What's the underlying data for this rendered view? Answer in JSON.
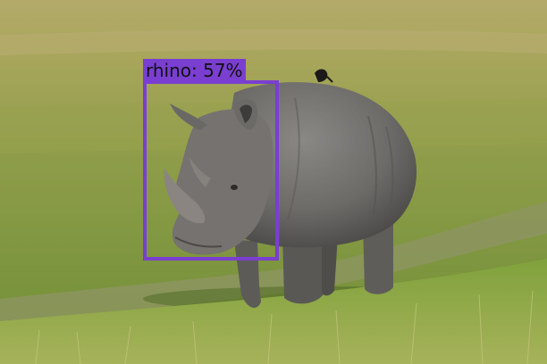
{
  "detections": [
    {
      "label": "rhino: 57%",
      "class_name": "rhino",
      "confidence": 0.57,
      "color": "#7a3fd0"
    }
  ],
  "scene": {
    "subject": "rhinoceros-icon",
    "sky_grass_color": "#9aa552",
    "grass_color": "#7f9a3c",
    "rhino_color": "#6f6d6a"
  }
}
